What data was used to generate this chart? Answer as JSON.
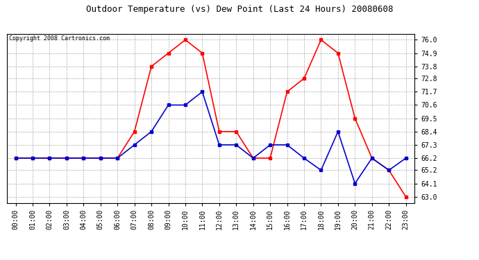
{
  "title": "Outdoor Temperature (vs) Dew Point (Last 24 Hours) 20080608",
  "copyright": "Copyright 2008 Cartronics.com",
  "hours": [
    0,
    1,
    2,
    3,
    4,
    5,
    6,
    7,
    8,
    9,
    10,
    11,
    12,
    13,
    14,
    15,
    16,
    17,
    18,
    19,
    20,
    21,
    22,
    23
  ],
  "hour_labels": [
    "00:00",
    "01:00",
    "02:00",
    "03:00",
    "04:00",
    "05:00",
    "06:00",
    "07:00",
    "08:00",
    "09:00",
    "10:00",
    "11:00",
    "12:00",
    "13:00",
    "14:00",
    "15:00",
    "16:00",
    "17:00",
    "18:00",
    "19:00",
    "20:00",
    "21:00",
    "22:00",
    "23:00"
  ],
  "temp": [
    66.2,
    66.2,
    66.2,
    66.2,
    66.2,
    66.2,
    66.2,
    68.4,
    73.8,
    74.9,
    76.0,
    74.9,
    68.4,
    68.4,
    66.2,
    66.2,
    71.7,
    72.8,
    76.0,
    74.9,
    69.5,
    66.2,
    65.2,
    63.0
  ],
  "dew": [
    66.2,
    66.2,
    66.2,
    66.2,
    66.2,
    66.2,
    66.2,
    67.3,
    68.4,
    70.6,
    70.6,
    71.7,
    67.3,
    67.3,
    66.2,
    67.3,
    67.3,
    66.2,
    65.2,
    68.4,
    64.1,
    66.2,
    65.2,
    66.2
  ],
  "temp_color": "#ff0000",
  "dew_color": "#0000cc",
  "bg_color": "#ffffff",
  "plot_bg": "#ffffff",
  "grid_color": "#aaaaaa",
  "yticks": [
    63.0,
    64.1,
    65.2,
    66.2,
    67.3,
    68.4,
    69.5,
    70.6,
    71.7,
    72.8,
    73.8,
    74.9,
    76.0
  ],
  "ymin": 62.5,
  "ymax": 76.5,
  "title_fontsize": 9,
  "copyright_fontsize": 6,
  "tick_fontsize": 7,
  "marker": "s",
  "marker_size": 2.5,
  "line_width": 1.2
}
